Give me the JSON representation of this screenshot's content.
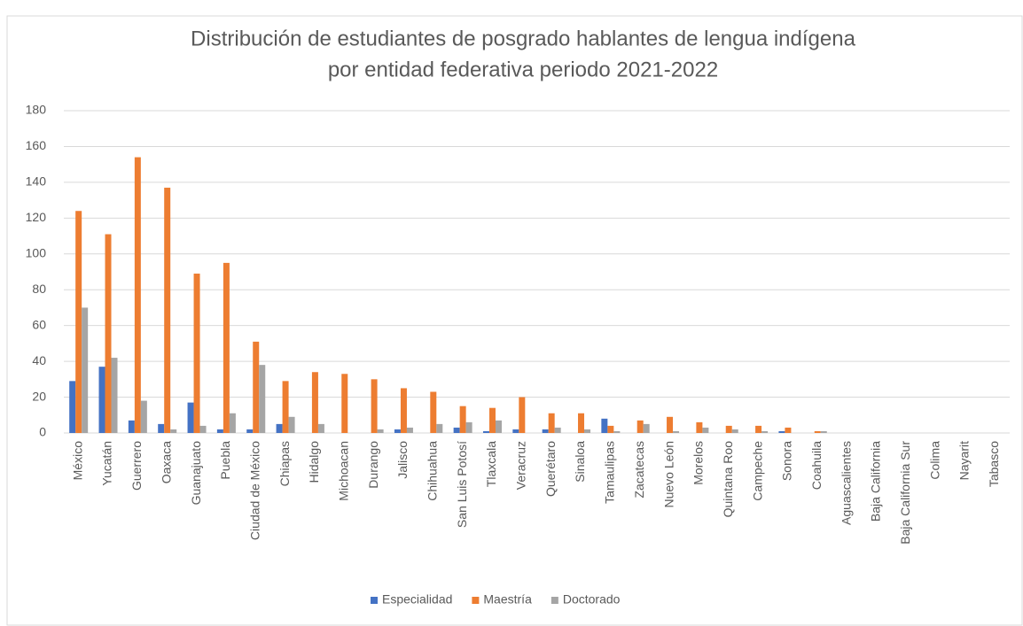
{
  "chart_data": {
    "type": "bar",
    "title": [
      "Distribución de estudiantes de posgrado hablantes de lengua indígena",
      "por entidad federativa periodo 2021-2022"
    ],
    "categories": [
      "México",
      "Yucatán",
      "Guerrero",
      "Oaxaca",
      "Guanajuato",
      "Puebla",
      "Ciudad de México",
      "Chiapas",
      "Hidalgo",
      "Michoacan",
      "Durango",
      "Jalisco",
      "Chihuahua",
      "San Luis Potosí",
      "Tlaxcala",
      "Veracruz",
      "Querétaro",
      "Sinaloa",
      "Tamaulipas",
      "Zacatecas",
      "Nuevo León",
      "Morelos",
      "Quintana Roo",
      "Campeche",
      "Sonora",
      "Coahuila",
      "Aguascalientes",
      "Baja California",
      "Baja California Sur",
      "Colima",
      "Nayarit",
      "Tabasco"
    ],
    "series": [
      {
        "name": "Especialidad",
        "color": "#4472c4",
        "values": [
          29,
          37,
          7,
          5,
          17,
          2,
          2,
          5,
          0,
          0,
          0,
          2,
          0,
          3,
          1,
          2,
          2,
          0,
          8,
          0,
          0,
          0,
          0,
          0,
          1,
          0,
          0,
          0,
          0,
          0,
          0,
          0
        ]
      },
      {
        "name": "Maestría",
        "color": "#ed7d31",
        "values": [
          124,
          111,
          154,
          137,
          89,
          95,
          51,
          29,
          34,
          33,
          30,
          25,
          23,
          15,
          14,
          20,
          11,
          11,
          4,
          7,
          9,
          6,
          4,
          4,
          3,
          1,
          0,
          0,
          0,
          0,
          0,
          0
        ]
      },
      {
        "name": "Doctorado",
        "color": "#a5a5a5",
        "values": [
          70,
          42,
          18,
          2,
          4,
          11,
          38,
          9,
          5,
          0,
          2,
          3,
          5,
          6,
          7,
          0,
          3,
          2,
          1,
          5,
          1,
          3,
          2,
          1,
          0,
          1,
          0,
          0,
          0,
          0,
          0,
          0
        ]
      }
    ],
    "ylim": [
      0,
      180
    ],
    "yticks": [
      0,
      20,
      40,
      60,
      80,
      100,
      120,
      140,
      160,
      180
    ],
    "grid": true,
    "legend": "bottom"
  }
}
